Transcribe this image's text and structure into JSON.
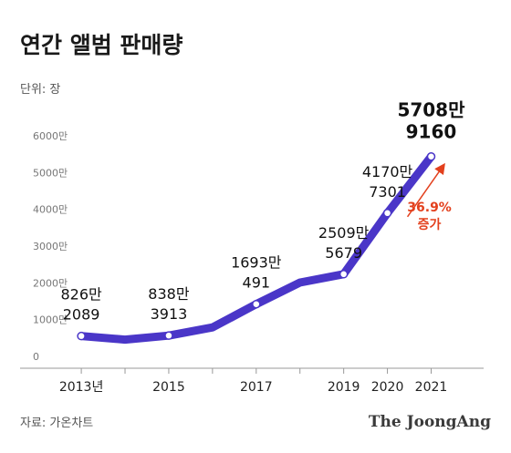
{
  "title": "연간 앨범 판매량",
  "unit_label": "단위: 장",
  "source_label": "자료: 가온차트",
  "brand": "The JoongAng",
  "colors": {
    "line": "#4a36c8",
    "growth": "#e3401d",
    "axis": "#999999",
    "grid": "#d9d9d9"
  },
  "chart_data": {
    "type": "line",
    "title": "연간 앨범 판매량",
    "x": [
      2013,
      2014,
      2015,
      2016,
      2017,
      2018,
      2019,
      2020,
      2021
    ],
    "y_tick_labels": [
      "0",
      "1000만",
      "2000만",
      "3000만",
      "4000만",
      "5000만",
      "6000만"
    ],
    "x_tick_labels": [
      {
        "x": 2013,
        "label": "2013년"
      },
      {
        "x": 2015,
        "label": "2015"
      },
      {
        "x": 2017,
        "label": "2017"
      },
      {
        "x": 2019,
        "label": "2019"
      },
      {
        "x": 2020,
        "label": "2020"
      },
      {
        "x": 2021,
        "label": "2021"
      }
    ],
    "ylim": [
      0,
      60000000
    ],
    "xlim": [
      2011.6,
      2022.2
    ],
    "series": [
      {
        "values": [
          8262089,
          7300000,
          8383913,
          10600000,
          16930491,
          22800000,
          25095679,
          41707301,
          57089160
        ]
      }
    ],
    "data_labels": [
      {
        "x": 2013,
        "line1": "826만",
        "line2": "2089",
        "emphasis": false
      },
      {
        "x": 2015,
        "line1": "838만",
        "line2": "3913",
        "emphasis": false
      },
      {
        "x": 2017,
        "line1": "1693만",
        "line2": "491",
        "emphasis": false
      },
      {
        "x": 2019,
        "line1": "2509만",
        "line2": "5679",
        "emphasis": false
      },
      {
        "x": 2020,
        "line1": "4170만",
        "line2": "7301",
        "emphasis": false
      },
      {
        "x": 2021,
        "line1": "5708만",
        "line2": "9160",
        "emphasis": true
      }
    ],
    "marked_points": [
      2013,
      2015,
      2017,
      2019,
      2020,
      2021
    ],
    "annotation": {
      "value": "36.9%",
      "label": "증가"
    },
    "grid": false
  }
}
